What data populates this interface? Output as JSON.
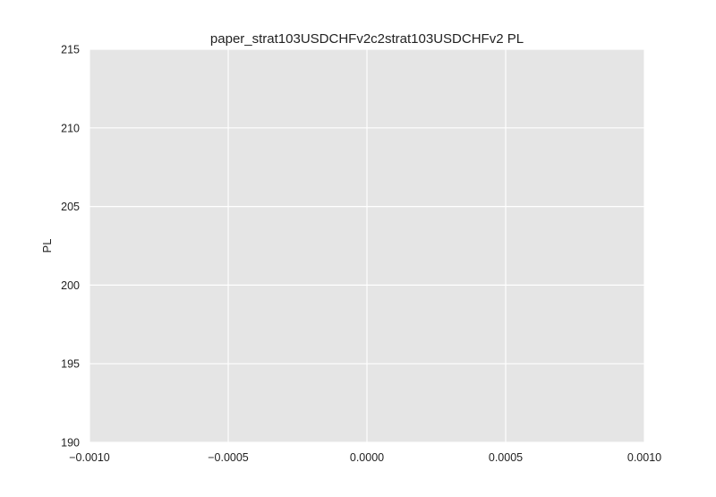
{
  "chart_data": {
    "type": "line",
    "title": "paper_strat103USDCHFv2c2strat103USDCHFv2 PL",
    "xlabel": "",
    "ylabel": "PL",
    "xlim": [
      -0.001,
      0.001
    ],
    "ylim": [
      190,
      215
    ],
    "x_ticks": [
      -0.001,
      -0.0005,
      0.0,
      0.0005,
      0.001
    ],
    "x_tick_labels": [
      "−0.0010",
      "−0.0005",
      "0.0000",
      "0.0005",
      "0.0010"
    ],
    "y_ticks": [
      190,
      195,
      200,
      205,
      210,
      215
    ],
    "y_tick_labels": [
      "190",
      "195",
      "200",
      "205",
      "210",
      "215"
    ],
    "grid": true,
    "legend": "none",
    "series": [
      {
        "x": [],
        "y": []
      }
    ],
    "colors": {
      "plot_background": "#e5e5e5",
      "grid": "#ffffff",
      "text": "#222222"
    }
  }
}
